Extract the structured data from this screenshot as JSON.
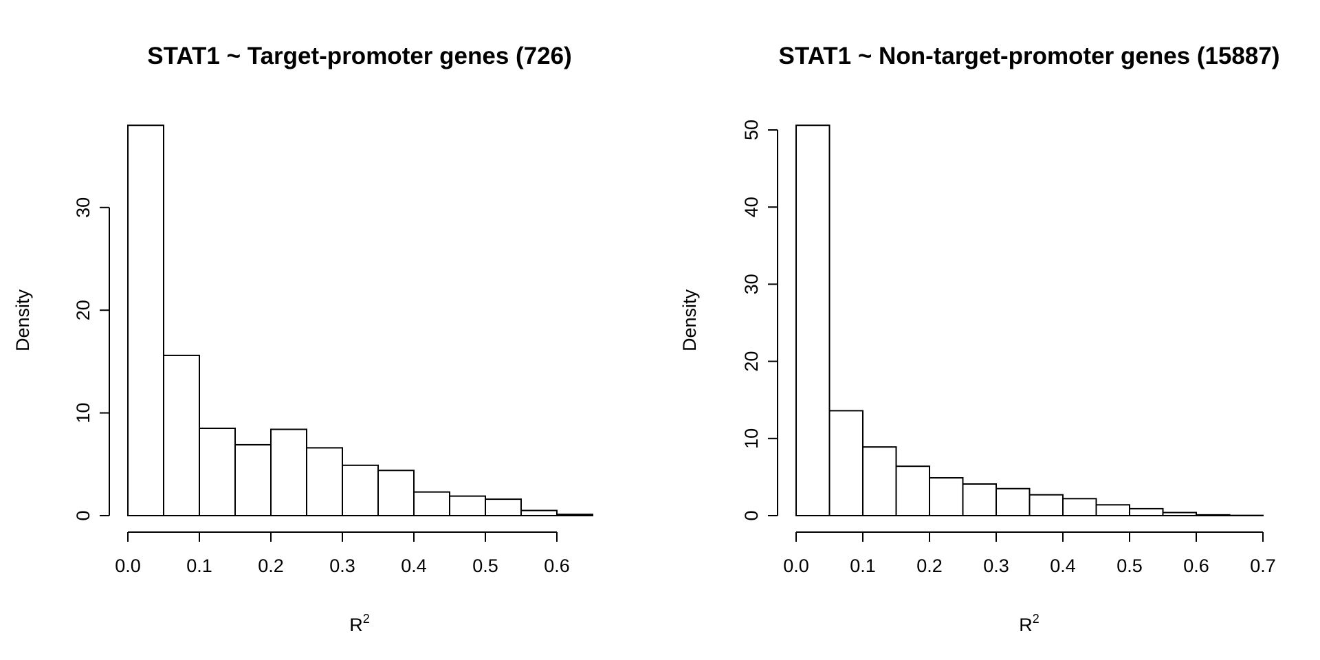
{
  "chart_data": [
    {
      "type": "bar",
      "title": "STAT1 ~ Target-promoter genes (726)",
      "xlabel": "R",
      "xlabel_superscript": "2",
      "ylabel": "Density",
      "bin_width": 0.05,
      "bin_start": 0.0,
      "bin_edges": [
        0.0,
        0.05,
        0.1,
        0.15,
        0.2,
        0.25,
        0.3,
        0.35,
        0.4,
        0.45,
        0.5,
        0.55,
        0.6,
        0.65
      ],
      "values": [
        38.0,
        15.6,
        8.5,
        6.9,
        8.4,
        6.6,
        4.9,
        4.4,
        2.3,
        1.9,
        1.6,
        0.5,
        0.12
      ],
      "xlim": [
        0.0,
        0.65
      ],
      "ylim": [
        0,
        38
      ],
      "xticks": [
        0.0,
        0.1,
        0.2,
        0.3,
        0.4,
        0.5,
        0.6
      ],
      "xtick_labels": [
        "0.0",
        "0.1",
        "0.2",
        "0.3",
        "0.4",
        "0.5",
        "0.6"
      ],
      "yticks": [
        0,
        10,
        20,
        30
      ],
      "ytick_labels": [
        "0",
        "10",
        "20",
        "30"
      ],
      "grid": false
    },
    {
      "type": "bar",
      "title": "STAT1 ~ Non-target-promoter genes (15887)",
      "xlabel": "R",
      "xlabel_superscript": "2",
      "ylabel": "Density",
      "bin_width": 0.05,
      "bin_start": 0.0,
      "bin_edges": [
        0.0,
        0.05,
        0.1,
        0.15,
        0.2,
        0.25,
        0.3,
        0.35,
        0.4,
        0.45,
        0.5,
        0.55,
        0.6,
        0.65,
        0.7
      ],
      "values": [
        50.6,
        13.6,
        8.9,
        6.4,
        4.9,
        4.1,
        3.5,
        2.7,
        2.2,
        1.4,
        0.9,
        0.4,
        0.1,
        0.03
      ],
      "xlim": [
        0.0,
        0.7
      ],
      "ylim": [
        0,
        50.6
      ],
      "xticks": [
        0.0,
        0.1,
        0.2,
        0.3,
        0.4,
        0.5,
        0.6,
        0.7
      ],
      "xtick_labels": [
        "0.0",
        "0.1",
        "0.2",
        "0.3",
        "0.4",
        "0.5",
        "0.6",
        "0.7"
      ],
      "yticks": [
        0,
        10,
        20,
        30,
        40,
        50
      ],
      "ytick_labels": [
        "0",
        "10",
        "20",
        "30",
        "40",
        "50"
      ],
      "grid": false
    }
  ]
}
